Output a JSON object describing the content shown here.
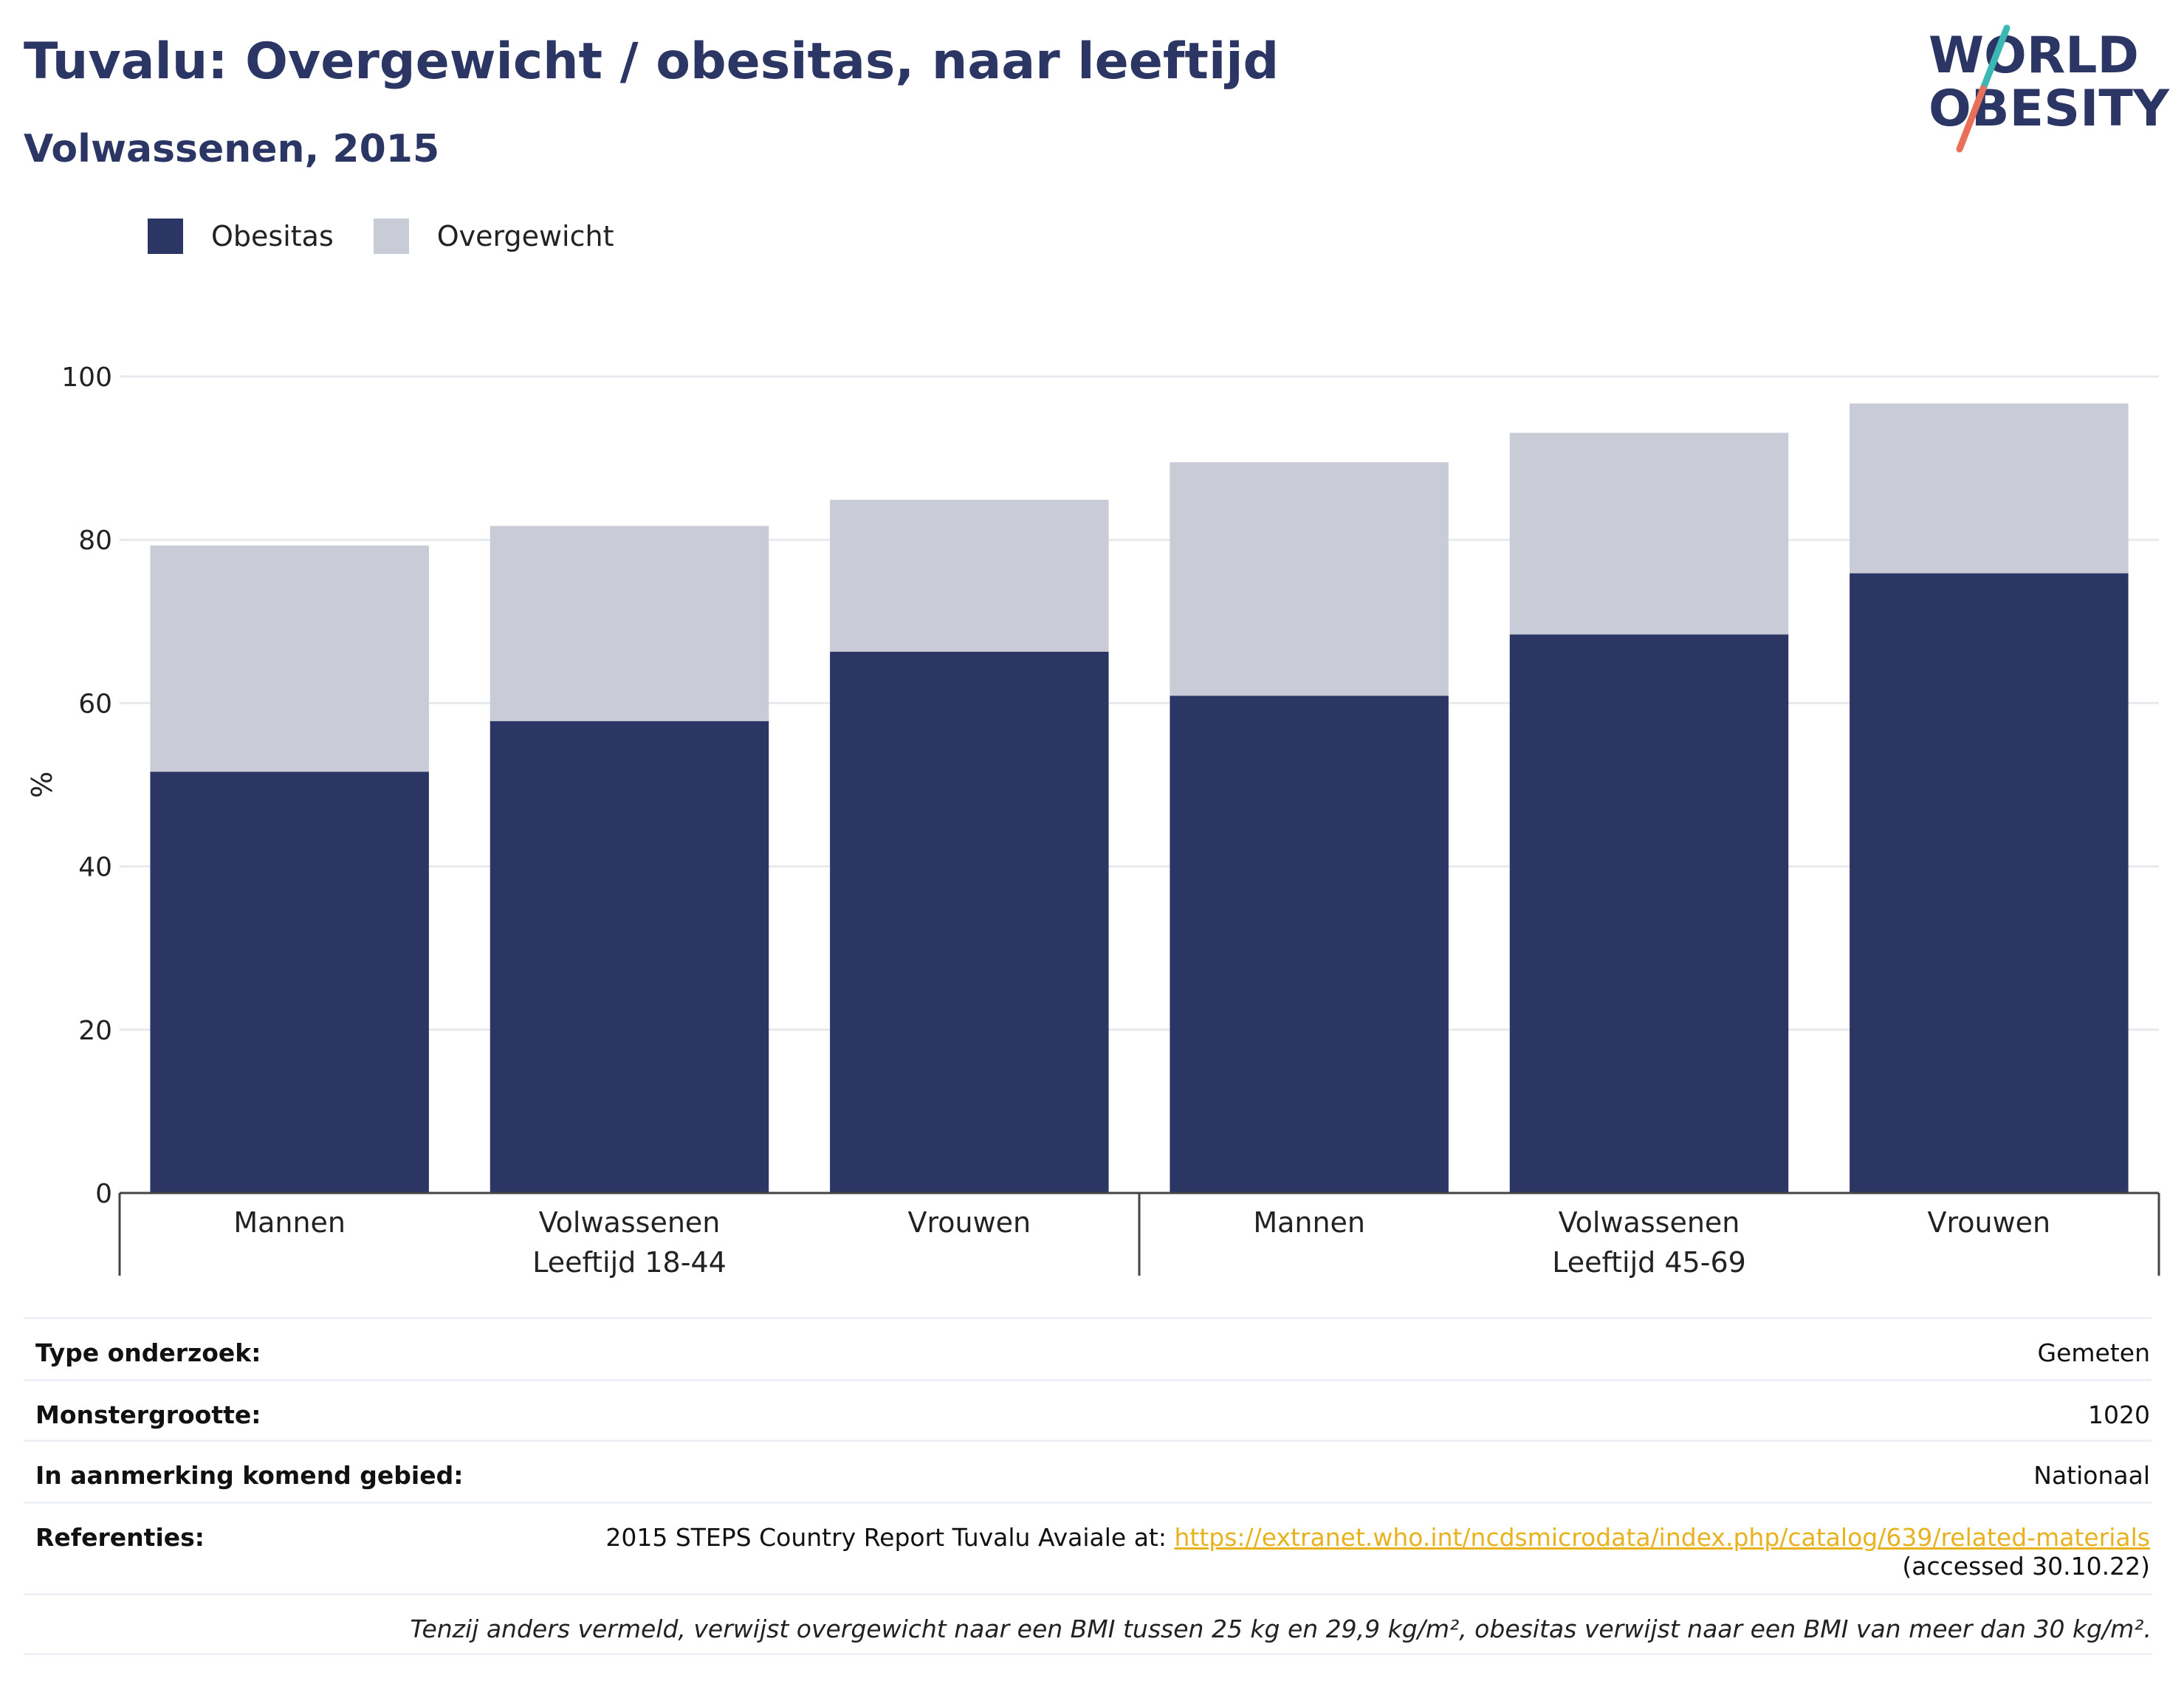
{
  "header": {
    "title": "Tuvalu: Overgewicht / obesitas, naar leeftijd",
    "subtitle": "Volwassenen, 2015"
  },
  "logo": {
    "line1": "WORLD",
    "line2": "OBESITY"
  },
  "colors": {
    "obesitas": "#2b3664",
    "overgewicht": "#c9cbd7",
    "title": "#2b3664",
    "link": "#e8b21f",
    "logo_teal": "#3bb8b4",
    "logo_coral": "#e8705a"
  },
  "chart_data": {
    "type": "bar",
    "stacked": true,
    "categories": [
      "Mannen",
      "Volwassenen",
      "Vrouwen",
      "Mannen",
      "Volwassenen",
      "Vrouwen"
    ],
    "groups": [
      {
        "label": "Leeftijd 18-44",
        "categories": [
          "Mannen",
          "Volwassenen",
          "Vrouwen"
        ]
      },
      {
        "label": "Leeftijd 45-69",
        "categories": [
          "Mannen",
          "Volwassenen",
          "Vrouwen"
        ]
      }
    ],
    "series": [
      {
        "name": "Obesitas",
        "values": [
          51.6,
          57.8,
          66.3,
          60.9,
          68.4,
          75.9
        ]
      },
      {
        "name": "Overgewicht",
        "values": [
          27.7,
          23.9,
          18.6,
          28.6,
          24.7,
          20.8
        ]
      }
    ],
    "ylabel": "%",
    "ylim": [
      0,
      100
    ],
    "yticks": [
      0,
      20,
      40,
      60,
      80,
      100
    ],
    "grid": true,
    "legend_position": "top-left"
  },
  "info": {
    "type_label": "Type onderzoek:",
    "type_value": "Gemeten",
    "size_label": "Monstergrootte:",
    "size_value": "1020",
    "area_label": "In aanmerking komend gebied:",
    "area_value": "Nationaal",
    "ref_label": "Referenties:",
    "ref_text": "2015 STEPS Country Report Tuvalu Avaiale at: ",
    "ref_link": "https://extranet.who.int/ncdsmicrodata/index.php/catalog/639/related-materials",
    "ref_accessed": "(accessed 30.10.22)",
    "note": "Tenzij anders vermeld, verwijst overgewicht naar een BMI tussen 25 kg en 29,9 kg/m², obesitas verwijst naar een BMI van meer dan 30 kg/m²."
  }
}
